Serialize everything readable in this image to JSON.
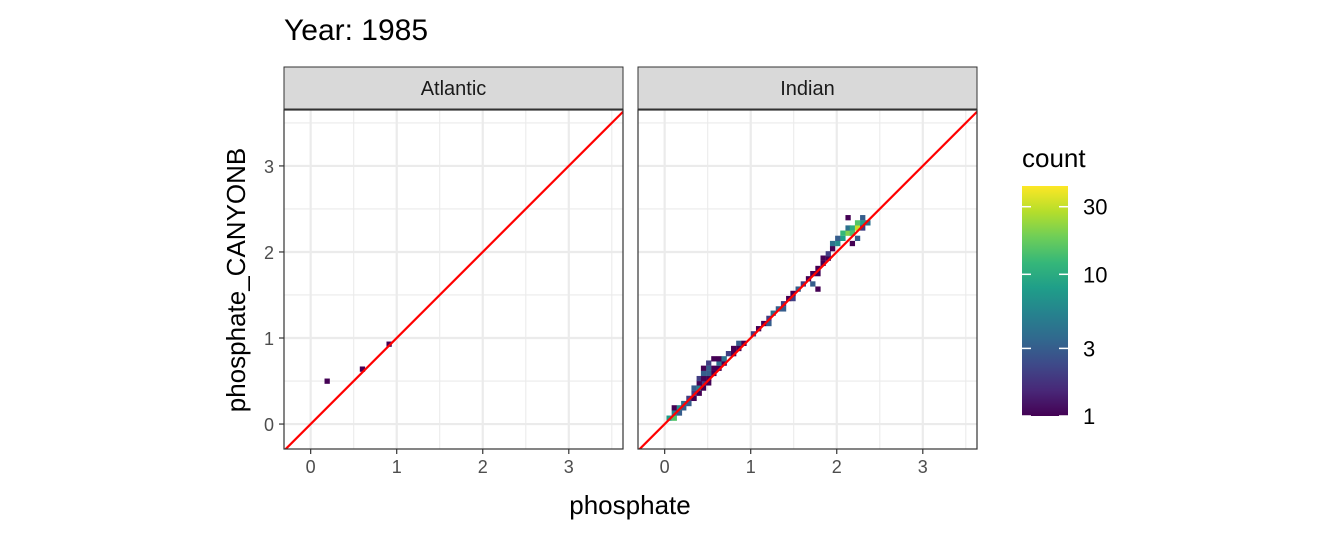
{
  "chart_data": {
    "type": "heatmap",
    "title": "Year: 1985",
    "xlabel": "phosphate",
    "ylabel": "phosphate_CANYONB",
    "xlim": [
      -0.31,
      3.63
    ],
    "ylim": [
      -0.29,
      3.65
    ],
    "x_ticks": [
      0,
      1,
      2,
      3
    ],
    "y_ticks": [
      0,
      1,
      2,
      3
    ],
    "grid": true,
    "reference_line": {
      "slope": 1,
      "intercept": 0,
      "color": "#ff0000"
    },
    "bin_width": 0.058,
    "legend": {
      "title": "count",
      "placement": "right",
      "scale": "log",
      "range": [
        1,
        42
      ],
      "ticks": [
        1,
        3,
        10,
        30
      ],
      "colormap": "viridis"
    },
    "facets": [
      {
        "label": "Atlantic",
        "bins": [
          [
            0.19,
            0.5,
            1
          ],
          [
            0.6,
            0.64,
            1
          ],
          [
            0.91,
            0.93,
            1
          ]
        ]
      },
      {
        "label": "Indian",
        "bins": [
          [
            0.05,
            0.07,
            8
          ],
          [
            0.11,
            0.07,
            15
          ],
          [
            0.11,
            0.13,
            5
          ],
          [
            0.17,
            0.13,
            3
          ],
          [
            0.11,
            0.19,
            1
          ],
          [
            0.17,
            0.19,
            6
          ],
          [
            0.22,
            0.19,
            3
          ],
          [
            0.22,
            0.24,
            4
          ],
          [
            0.28,
            0.24,
            3
          ],
          [
            0.28,
            0.3,
            2
          ],
          [
            0.34,
            0.3,
            1
          ],
          [
            0.34,
            0.36,
            2
          ],
          [
            0.4,
            0.36,
            1
          ],
          [
            0.4,
            0.42,
            5
          ],
          [
            0.34,
            0.42,
            3
          ],
          [
            0.45,
            0.42,
            1
          ],
          [
            0.45,
            0.48,
            2
          ],
          [
            0.4,
            0.48,
            1
          ],
          [
            0.51,
            0.48,
            1
          ],
          [
            0.4,
            0.53,
            2
          ],
          [
            0.45,
            0.53,
            1
          ],
          [
            0.51,
            0.53,
            1
          ],
          [
            0.45,
            0.59,
            3
          ],
          [
            0.51,
            0.59,
            3
          ],
          [
            0.57,
            0.59,
            1
          ],
          [
            0.51,
            0.65,
            3
          ],
          [
            0.57,
            0.65,
            1
          ],
          [
            0.63,
            0.65,
            1
          ],
          [
            0.45,
            0.65,
            1
          ],
          [
            0.51,
            0.71,
            2
          ],
          [
            0.63,
            0.71,
            4
          ],
          [
            0.69,
            0.71,
            1
          ],
          [
            0.57,
            0.76,
            1
          ],
          [
            0.63,
            0.76,
            1
          ],
          [
            0.69,
            0.76,
            4
          ],
          [
            0.74,
            0.82,
            2
          ],
          [
            0.8,
            0.82,
            1
          ],
          [
            0.8,
            0.88,
            1
          ],
          [
            0.86,
            0.94,
            3
          ],
          [
            0.92,
            0.94,
            1
          ],
          [
            0.86,
            0.88,
            1
          ],
          [
            1.03,
            1.05,
            2
          ],
          [
            1.09,
            1.11,
            1
          ],
          [
            1.15,
            1.17,
            1
          ],
          [
            1.21,
            1.23,
            2
          ],
          [
            1.21,
            1.17,
            3
          ],
          [
            1.26,
            1.29,
            4
          ],
          [
            1.32,
            1.34,
            3
          ],
          [
            1.38,
            1.4,
            2
          ],
          [
            1.44,
            1.46,
            1
          ],
          [
            1.38,
            1.34,
            3
          ],
          [
            1.49,
            1.46,
            2
          ],
          [
            1.49,
            1.52,
            1
          ],
          [
            1.55,
            1.57,
            3
          ],
          [
            1.61,
            1.63,
            2
          ],
          [
            1.67,
            1.69,
            1
          ],
          [
            1.72,
            1.63,
            3
          ],
          [
            1.72,
            1.75,
            1
          ],
          [
            1.78,
            1.75,
            1
          ],
          [
            1.78,
            1.57,
            1
          ],
          [
            1.78,
            1.81,
            1
          ],
          [
            1.84,
            1.87,
            1
          ],
          [
            1.84,
            1.93,
            1
          ],
          [
            1.9,
            1.93,
            1
          ],
          [
            1.9,
            1.98,
            2
          ],
          [
            1.95,
            2.04,
            1
          ],
          [
            1.95,
            2.1,
            4
          ],
          [
            2.01,
            2.1,
            6
          ],
          [
            2.07,
            2.16,
            8
          ],
          [
            2.01,
            2.16,
            3
          ],
          [
            2.07,
            2.22,
            12
          ],
          [
            2.13,
            2.22,
            20
          ],
          [
            2.13,
            2.28,
            4
          ],
          [
            2.18,
            2.28,
            10
          ],
          [
            2.18,
            2.22,
            14
          ],
          [
            2.24,
            2.28,
            30
          ],
          [
            2.24,
            2.34,
            15
          ],
          [
            2.3,
            2.34,
            8
          ],
          [
            2.3,
            2.4,
            3
          ],
          [
            2.36,
            2.34,
            4
          ],
          [
            2.24,
            2.16,
            3
          ],
          [
            2.18,
            2.1,
            1
          ],
          [
            2.3,
            2.28,
            2
          ],
          [
            2.13,
            2.4,
            1
          ]
        ]
      }
    ]
  }
}
